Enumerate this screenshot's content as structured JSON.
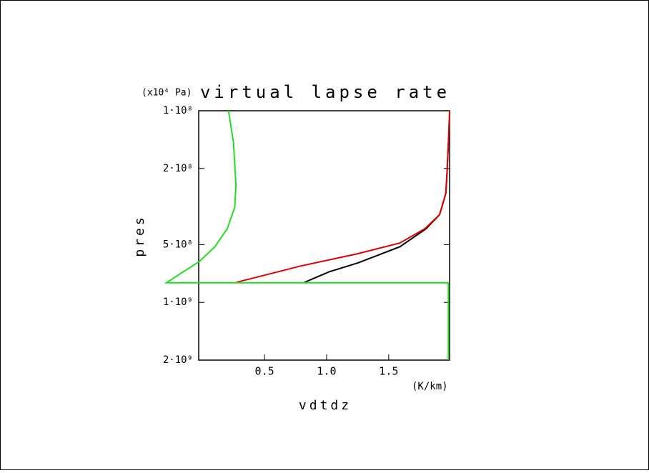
{
  "chart_data": {
    "type": "line",
    "title": "virtual lapse rate",
    "y_unit_label": "(x10⁴ Pa)",
    "x_unit_label": "(K/km)",
    "xlabel": "vdtdz",
    "ylabel": "pres",
    "xlim": [
      -0.03,
      1.99
    ],
    "xticks": [
      {
        "value": 0.5,
        "label": "0.5"
      },
      {
        "value": 1.0,
        "label": "1.0"
      },
      {
        "value": 1.5,
        "label": "1.5"
      }
    ],
    "ylim": [
      100000000,
      2000000000
    ],
    "yticks": [
      {
        "value": 100000000,
        "label": "1·10⁸"
      },
      {
        "value": 200000000,
        "label": "2·10⁸"
      },
      {
        "value": 500000000,
        "label": "5·10⁸"
      },
      {
        "value": 1000000000,
        "label": "1·10⁹"
      },
      {
        "value": 2000000000,
        "label": "2·10⁹"
      }
    ],
    "log_y": true,
    "invert_y": true,
    "series": [
      {
        "color": "#000000",
        "values": [
          1.98,
          1.97,
          1.96,
          1.91,
          1.8,
          1.59,
          1.25,
          1.02,
          0.82
        ],
        "y": [
          147000000,
          208000000,
          269000000,
          348000000,
          413000000,
          512000000,
          623000000,
          692000000,
          787000000
        ]
      },
      {
        "color": "#e00000",
        "values": [
          1.99,
          1.98,
          1.97,
          1.96,
          1.91,
          1.79,
          1.59,
          1.25,
          0.79,
          0.27
        ],
        "y": [
          100000000,
          147000000,
          208000000,
          269000000,
          348000000,
          413000000,
          490000000,
          557000000,
          646000000,
          787000000
        ]
      },
      {
        "color": "#22dd22",
        "values": [
          0.21,
          0.25,
          0.27,
          0.26,
          0.2,
          0.1,
          -0.02,
          -0.29,
          1.98,
          1.98
        ],
        "y": [
          100000000,
          147000000,
          246000000,
          319000000,
          413000000,
          512000000,
          608000000,
          790000000,
          790000000,
          2000000000
        ]
      }
    ]
  }
}
